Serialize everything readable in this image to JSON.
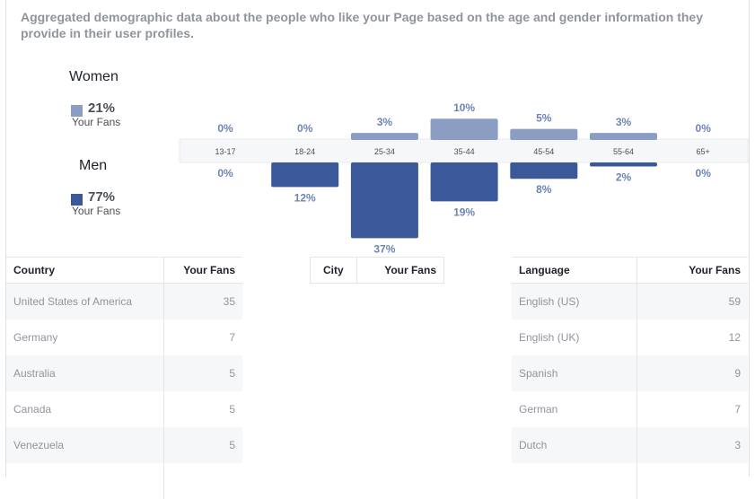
{
  "description": "Aggregated demographic data about the people who like your Page based on the age and gender information they provide in their user profiles.",
  "legend": {
    "women": {
      "title": "Women",
      "pct": "21%",
      "sub": "Your Fans",
      "color": "#8b9dc3"
    },
    "men": {
      "title": "Men",
      "pct": "77%",
      "sub": "Your Fans",
      "color": "#3b5998"
    }
  },
  "chart_data": {
    "type": "bar",
    "categories": [
      "13-17",
      "18-24",
      "25-34",
      "35-44",
      "45-54",
      "55-64",
      "65+"
    ],
    "series": [
      {
        "name": "Women",
        "values": [
          0,
          0,
          3,
          10,
          5,
          3,
          0
        ],
        "labels": [
          "0%",
          "0%",
          "3%",
          "10%",
          "5%",
          "3%",
          "0%"
        ]
      },
      {
        "name": "Men",
        "values": [
          0,
          12,
          37,
          19,
          8,
          2,
          0
        ],
        "labels": [
          "0%",
          "12%",
          "37%",
          "19%",
          "8%",
          "2%",
          "0%"
        ]
      }
    ],
    "colors": {
      "women": "#8b9dc3",
      "men": "#3b5998",
      "label": "#6d84b4"
    },
    "unit": "%"
  },
  "tables": {
    "country": {
      "headers": [
        "Country",
        "Your Fans"
      ],
      "rows": [
        [
          "United States of America",
          "35"
        ],
        [
          "Germany",
          "7"
        ],
        [
          "Australia",
          "5"
        ],
        [
          "Canada",
          "5"
        ],
        [
          "Venezuela",
          "5"
        ]
      ]
    },
    "city": {
      "headers": [
        "City",
        "Your Fans"
      ],
      "rows": []
    },
    "language": {
      "headers": [
        "Language",
        "Your Fans"
      ],
      "rows": [
        [
          "English (US)",
          "59"
        ],
        [
          "English (UK)",
          "12"
        ],
        [
          "Spanish",
          "9"
        ],
        [
          "German",
          "7"
        ],
        [
          "Dutch",
          "3"
        ]
      ]
    }
  }
}
